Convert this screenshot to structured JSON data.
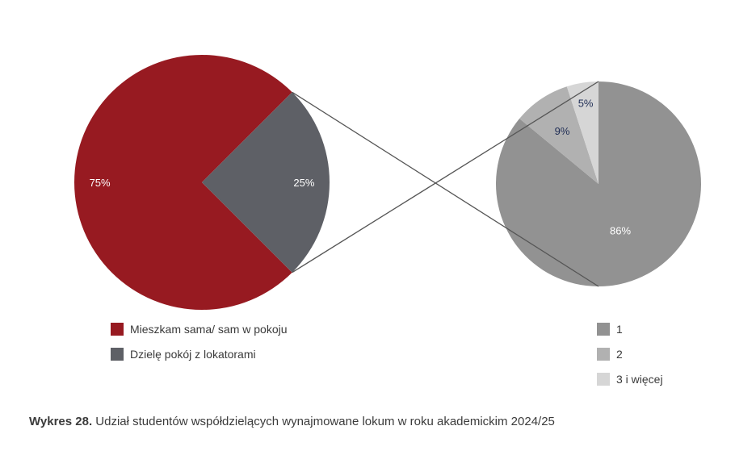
{
  "chart_data": [
    {
      "type": "pie",
      "categories": [
        "Mieszkam sama/ sam w pokoju",
        "Dzielę pokój z lokatorami"
      ],
      "values": [
        75,
        25
      ],
      "labels": [
        "75%",
        "25%"
      ],
      "colors": [
        "#971a21",
        "#5e6066"
      ],
      "label_colors": [
        "#ffffff",
        "#ffffff"
      ],
      "legend": "bottom"
    },
    {
      "type": "pie",
      "categories": [
        "1",
        "2",
        "3 i więcej"
      ],
      "values": [
        86,
        9,
        5
      ],
      "labels": [
        "86%",
        "9%",
        "5%"
      ],
      "colors": [
        "#929292",
        "#b1b1b1",
        "#d6d6d6"
      ],
      "label_colors": [
        "#ffffff",
        "#1f2d55",
        "#1f2d55"
      ],
      "legend": "bottom"
    }
  ],
  "caption": {
    "prefix": "Wykres 28.",
    "text": " Udział studentów współdzielących wynajmowane lokum w roku akademickim 2024/25"
  }
}
